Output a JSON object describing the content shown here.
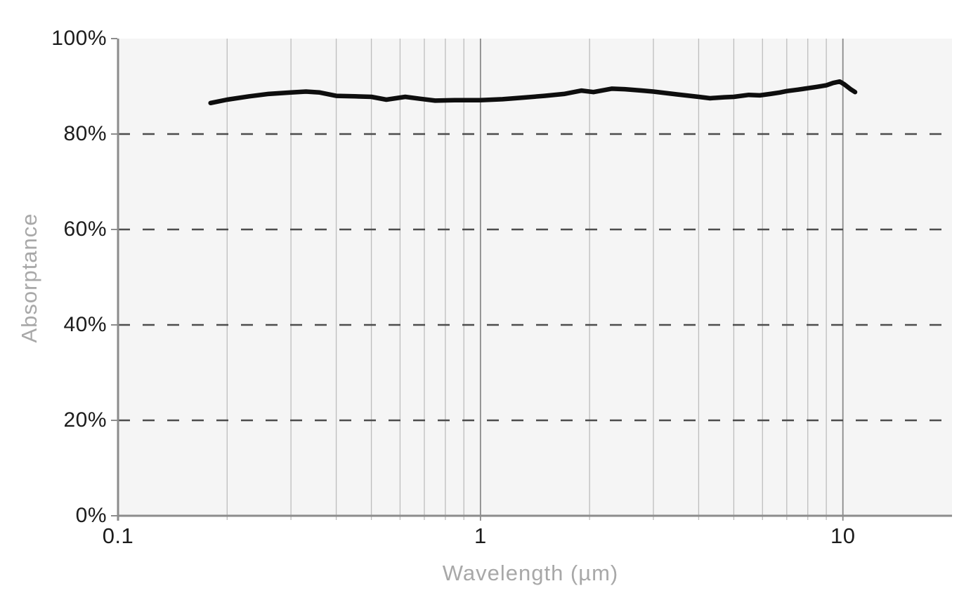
{
  "chart_data": {
    "type": "line",
    "xlabel": "Wavelength (µm)",
    "ylabel": "Absorptance",
    "x_scale": "log",
    "xlim": [
      0.1,
      20
    ],
    "ylim": [
      0,
      100
    ],
    "grid": "vertical-solid-minor, horizontal-dashed-major",
    "legend": "none",
    "x_ticks": [
      {
        "value": 0.1,
        "label": "0.1"
      },
      {
        "value": 1,
        "label": "1"
      },
      {
        "value": 10,
        "label": "10"
      }
    ],
    "x_minor_gridlines": [
      0.2,
      0.3,
      0.4,
      0.5,
      0.6,
      0.7,
      0.8,
      0.9,
      2,
      3,
      4,
      5,
      6,
      7,
      8,
      9
    ],
    "y_ticks": [
      {
        "value": 0,
        "label": "0%"
      },
      {
        "value": 20,
        "label": "20%"
      },
      {
        "value": 40,
        "label": "40%"
      },
      {
        "value": 60,
        "label": "60%"
      },
      {
        "value": 80,
        "label": "80%"
      },
      {
        "value": 100,
        "label": "100%"
      }
    ],
    "y_dashed_gridlines": [
      20,
      40,
      60,
      80
    ],
    "series": [
      {
        "name": "absorptance",
        "color": "#0e0e0e",
        "points": [
          [
            0.18,
            86.5
          ],
          [
            0.2,
            87.2
          ],
          [
            0.23,
            87.9
          ],
          [
            0.26,
            88.4
          ],
          [
            0.3,
            88.7
          ],
          [
            0.33,
            88.9
          ],
          [
            0.36,
            88.7
          ],
          [
            0.4,
            88.0
          ],
          [
            0.45,
            87.9
          ],
          [
            0.5,
            87.8
          ],
          [
            0.55,
            87.2
          ],
          [
            0.62,
            87.8
          ],
          [
            0.68,
            87.4
          ],
          [
            0.75,
            87.0
          ],
          [
            0.85,
            87.1
          ],
          [
            1.0,
            87.1
          ],
          [
            1.15,
            87.3
          ],
          [
            1.3,
            87.6
          ],
          [
            1.5,
            88.0
          ],
          [
            1.7,
            88.4
          ],
          [
            1.9,
            89.1
          ],
          [
            2.05,
            88.8
          ],
          [
            2.3,
            89.5
          ],
          [
            2.5,
            89.4
          ],
          [
            2.8,
            89.1
          ],
          [
            3.0,
            88.9
          ],
          [
            3.5,
            88.3
          ],
          [
            4.0,
            87.8
          ],
          [
            4.3,
            87.5
          ],
          [
            4.7,
            87.7
          ],
          [
            5.0,
            87.8
          ],
          [
            5.5,
            88.2
          ],
          [
            5.9,
            88.1
          ],
          [
            6.3,
            88.4
          ],
          [
            6.7,
            88.7
          ],
          [
            7.0,
            89.0
          ],
          [
            7.5,
            89.3
          ],
          [
            8.0,
            89.6
          ],
          [
            8.5,
            89.9
          ],
          [
            9.0,
            90.2
          ],
          [
            9.4,
            90.7
          ],
          [
            9.8,
            91.0
          ],
          [
            10.1,
            90.4
          ],
          [
            10.5,
            89.4
          ],
          [
            10.8,
            88.8
          ]
        ]
      }
    ]
  },
  "colors": {
    "background": "#ffffff",
    "plot_background": "#f5f5f5",
    "axis_line": "#8c8c8c",
    "minor_gridline": "#bdbdbd",
    "major_gridline": "#8a8a8a",
    "dashed_gridline": "#4d4d4d",
    "tick_label": "#1c1c1c",
    "axis_title": "#a8a8a8",
    "series_line": "#0e0e0e"
  }
}
